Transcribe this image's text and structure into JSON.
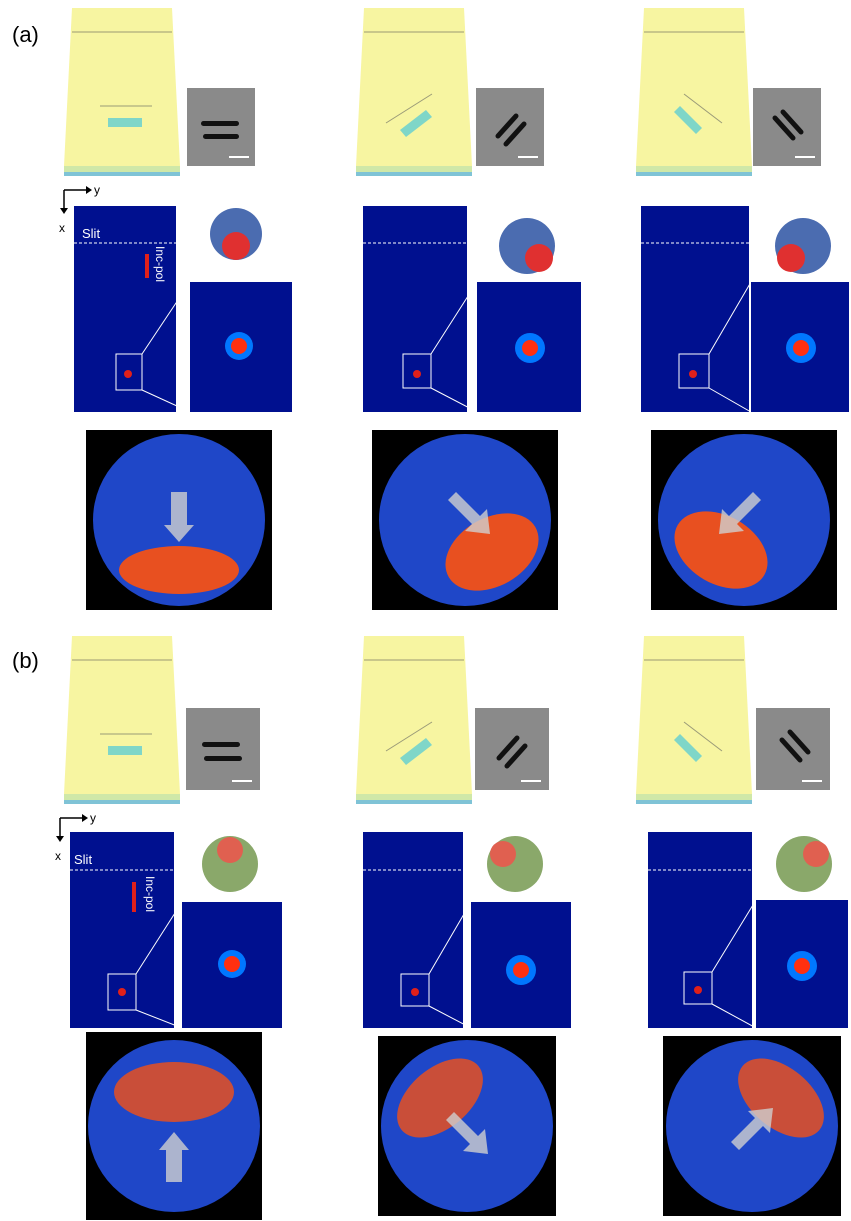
{
  "figure": {
    "panels": [
      {
        "label": "(a)",
        "axis": {
          "x_label": "x",
          "y_label": "y"
        },
        "slit_label": "Slit",
        "pol_label": "Inc-pol",
        "columns": [
          {
            "rotation_deg": 0,
            "arrow_direction": "down"
          },
          {
            "rotation_deg": 45,
            "arrow_direction": "down-right"
          },
          {
            "rotation_deg": -45,
            "arrow_direction": "down-left"
          }
        ]
      },
      {
        "label": "(b)",
        "axis": {
          "x_label": "x",
          "y_label": "y"
        },
        "slit_label": "Slit",
        "pol_label": "Inc-pol",
        "columns": [
          {
            "rotation_deg": 0,
            "arrow_direction": "up"
          },
          {
            "rotation_deg": 45,
            "arrow_direction": "down-right"
          },
          {
            "rotation_deg": -45,
            "arrow_direction": "up-right"
          }
        ]
      }
    ],
    "colors": {
      "gold_film": "#f7f5a1",
      "slit_aperture": "#7fd6c8",
      "field_background": "#00108f",
      "polarization_arrow": "#e0201a",
      "image_background": "#000000"
    }
  }
}
